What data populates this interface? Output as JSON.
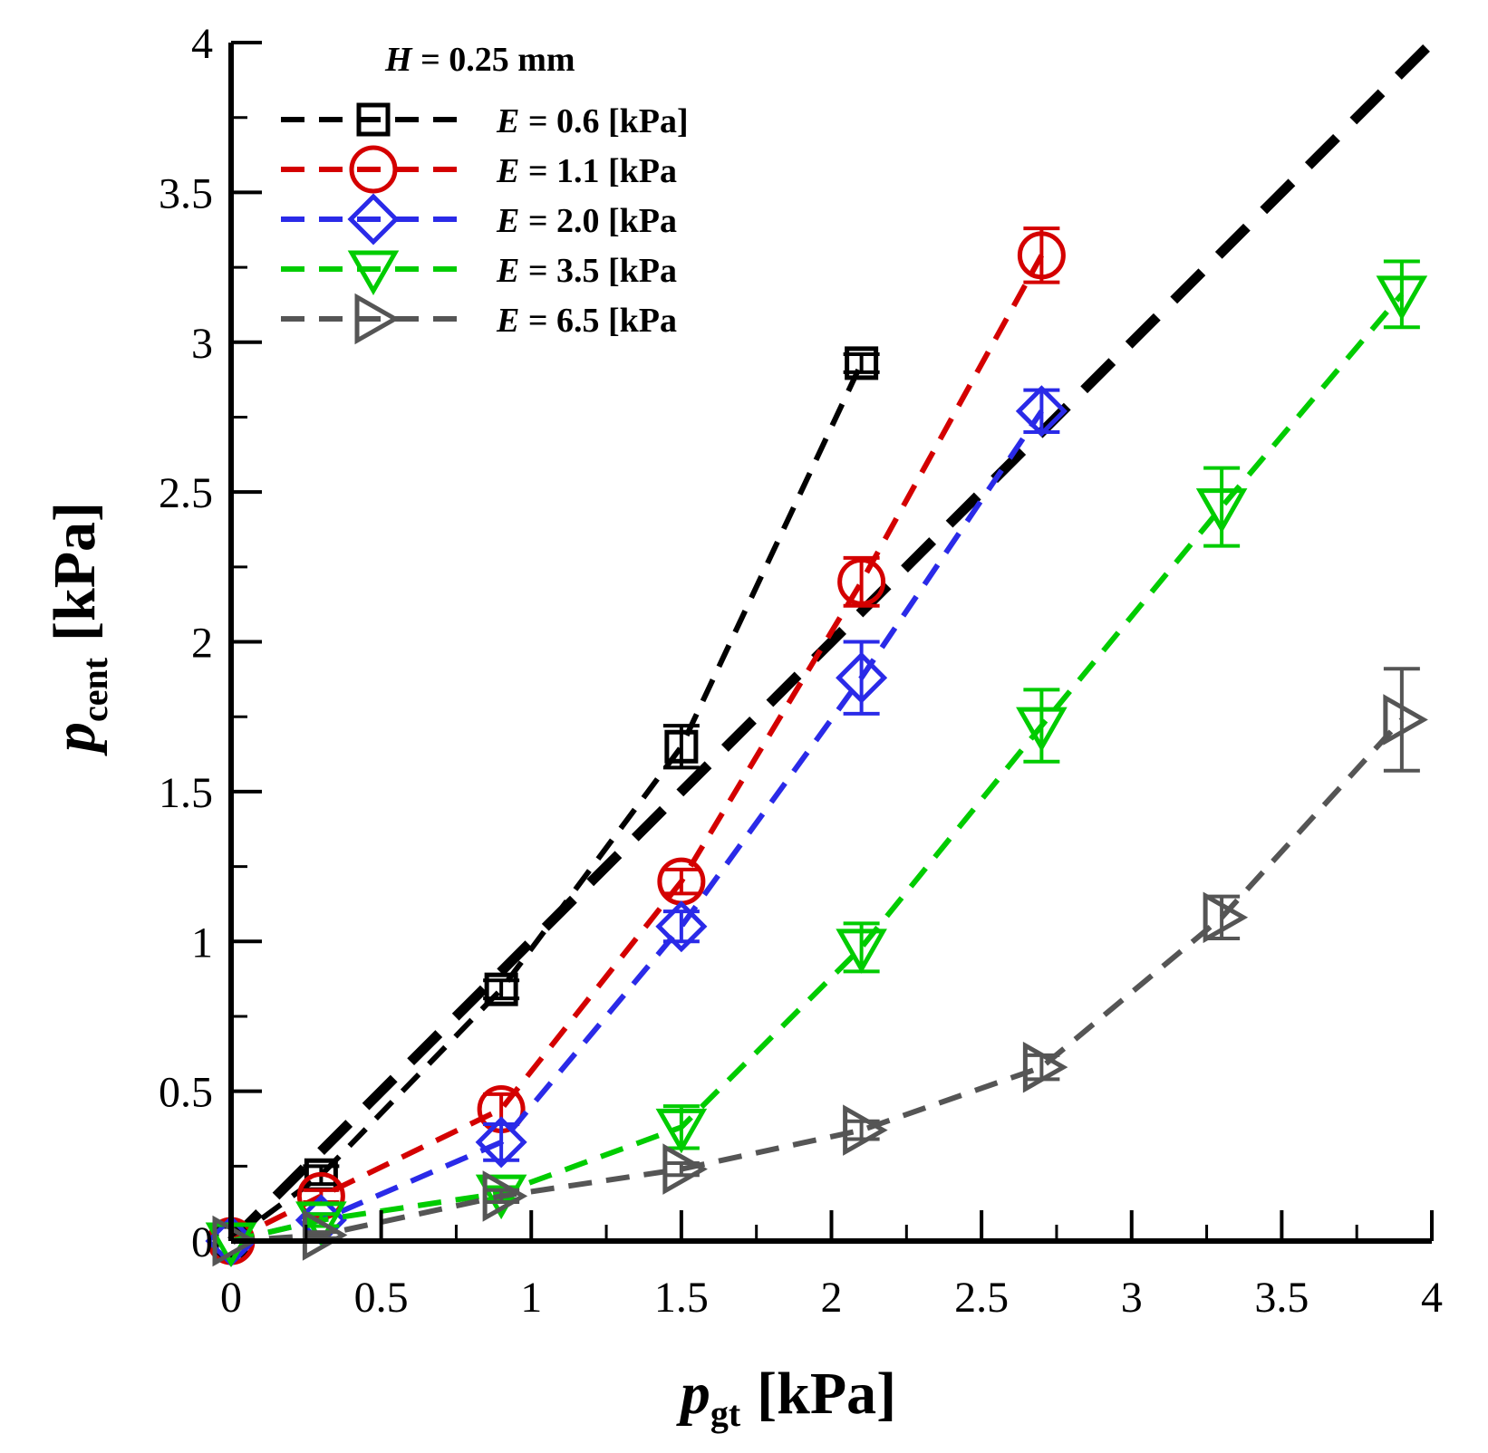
{
  "chart_data": {
    "type": "line",
    "title": "",
    "xlabel": {
      "main": "p",
      "sub": "gt",
      "unit": "[kPa]"
    },
    "ylabel": {
      "main": "p",
      "sub": "cent",
      "unit": "[kPa]"
    },
    "xlim": [
      0,
      4
    ],
    "ylim": [
      0,
      4
    ],
    "x_ticks": [
      "0",
      "0.5",
      "1",
      "1.5",
      "2",
      "2.5",
      "3",
      "3.5",
      "4"
    ],
    "y_ticks": [
      "0",
      "0.5",
      "1",
      "1.5",
      "2",
      "2.5",
      "3",
      "3.5",
      "4"
    ],
    "x_tick_values": [
      0,
      0.5,
      1,
      1.5,
      2,
      2.5,
      3,
      3.5,
      4
    ],
    "y_tick_values": [
      0,
      0.5,
      1,
      1.5,
      2,
      2.5,
      3,
      3.5,
      4
    ],
    "grid": false,
    "legend_position": "top-left",
    "legend_header": {
      "var": "H",
      "rest": " = 0.25 mm"
    },
    "reference_line": {
      "name": "y = x",
      "color": "#000000",
      "x": [
        0,
        4
      ],
      "y": [
        0,
        4
      ]
    },
    "series": [
      {
        "name": "E = 0.6 [kPa]",
        "legend_var": "E",
        "legend_rest": " = 0.6 [kPa]",
        "color": "#000000",
        "marker": "square",
        "x": [
          0,
          0.3,
          0.9,
          1.5,
          2.1
        ],
        "y": [
          0,
          0.22,
          0.84,
          1.65,
          2.93
        ],
        "err": [
          0,
          0.03,
          0.03,
          0.07,
          0.03
        ]
      },
      {
        "name": "E = 1.1 [kPa",
        "legend_var": "E",
        "legend_rest": " = 1.1 [kPa",
        "color": "#d40000",
        "marker": "circle",
        "x": [
          0,
          0.3,
          0.9,
          1.5,
          2.1,
          2.7
        ],
        "y": [
          0,
          0.15,
          0.44,
          1.2,
          2.2,
          3.29
        ],
        "err": [
          0,
          0.02,
          0.05,
          0.04,
          0.08,
          0.09
        ]
      },
      {
        "name": "E = 2.0 [kPa",
        "legend_var": "E",
        "legend_rest": " = 2.0 [kPa",
        "color": "#2a2ae8",
        "marker": "diamond",
        "x": [
          0,
          0.3,
          0.9,
          1.5,
          2.1,
          2.7
        ],
        "y": [
          0,
          0.07,
          0.33,
          1.05,
          1.88,
          2.77
        ],
        "err": [
          0,
          0.02,
          0.06,
          0.05,
          0.12,
          0.07
        ]
      },
      {
        "name": "E = 3.5 [kPa",
        "legend_var": "E",
        "legend_rest": " = 3.5 [kPa",
        "color": "#00cc00",
        "marker": "triangle-down",
        "x": [
          0,
          0.3,
          0.9,
          1.5,
          2.1,
          2.7,
          3.3,
          3.9
        ],
        "y": [
          0,
          0.07,
          0.16,
          0.38,
          0.98,
          1.72,
          2.45,
          3.16
        ],
        "err": [
          0,
          0.02,
          0.02,
          0.07,
          0.08,
          0.12,
          0.13,
          0.11
        ]
      },
      {
        "name": "E = 6.5 [kPa",
        "legend_var": "E",
        "legend_rest": " = 6.5 [kPa",
        "color": "#555555",
        "marker": "triangle-right",
        "x": [
          0,
          0.3,
          0.9,
          1.5,
          2.1,
          2.7,
          3.3,
          3.9
        ],
        "y": [
          0,
          0.02,
          0.15,
          0.24,
          0.37,
          0.58,
          1.08,
          1.74
        ],
        "err": [
          0,
          0.01,
          0.02,
          0.02,
          0.03,
          0.04,
          0.07,
          0.17
        ]
      }
    ]
  }
}
